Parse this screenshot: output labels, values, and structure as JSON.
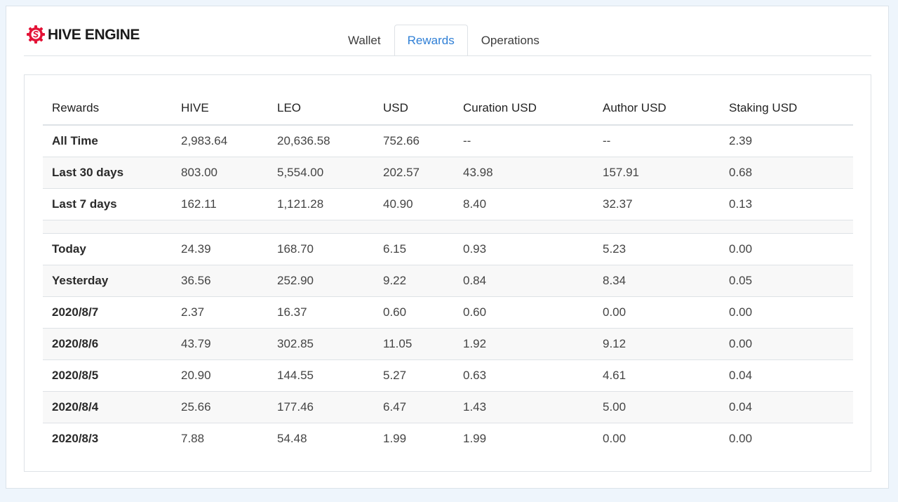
{
  "brand": {
    "name": "HIVE ENGINE",
    "logo_icon": "hive-engine-logo-icon",
    "accent": "#e31337"
  },
  "tabs": [
    {
      "label": "Wallet",
      "active": false
    },
    {
      "label": "Rewards",
      "active": true
    },
    {
      "label": "Operations",
      "active": false
    }
  ],
  "colors": {
    "active_tab": "#2f7fd6",
    "background": "#eef5fc"
  },
  "table": {
    "headers": [
      "Rewards",
      "HIVE",
      "LEO",
      "USD",
      "Curation USD",
      "Author USD",
      "Staking USD"
    ],
    "summary_rows": [
      [
        "All Time",
        "2,983.64",
        "20,636.58",
        "752.66",
        "--",
        "--",
        "2.39"
      ],
      [
        "Last 30 days",
        "803.00",
        "5,554.00",
        "202.57",
        "43.98",
        "157.91",
        "0.68"
      ],
      [
        "Last 7 days",
        "162.11",
        "1,121.28",
        "40.90",
        "8.40",
        "32.37",
        "0.13"
      ]
    ],
    "daily_rows": [
      [
        "Today",
        "24.39",
        "168.70",
        "6.15",
        "0.93",
        "5.23",
        "0.00"
      ],
      [
        "Yesterday",
        "36.56",
        "252.90",
        "9.22",
        "0.84",
        "8.34",
        "0.05"
      ],
      [
        "2020/8/7",
        "2.37",
        "16.37",
        "0.60",
        "0.60",
        "0.00",
        "0.00"
      ],
      [
        "2020/8/6",
        "43.79",
        "302.85",
        "11.05",
        "1.92",
        "9.12",
        "0.00"
      ],
      [
        "2020/8/5",
        "20.90",
        "144.55",
        "5.27",
        "0.63",
        "4.61",
        "0.04"
      ],
      [
        "2020/8/4",
        "25.66",
        "177.46",
        "6.47",
        "1.43",
        "5.00",
        "0.04"
      ],
      [
        "2020/8/3",
        "7.88",
        "54.48",
        "1.99",
        "1.99",
        "0.00",
        "0.00"
      ]
    ]
  }
}
